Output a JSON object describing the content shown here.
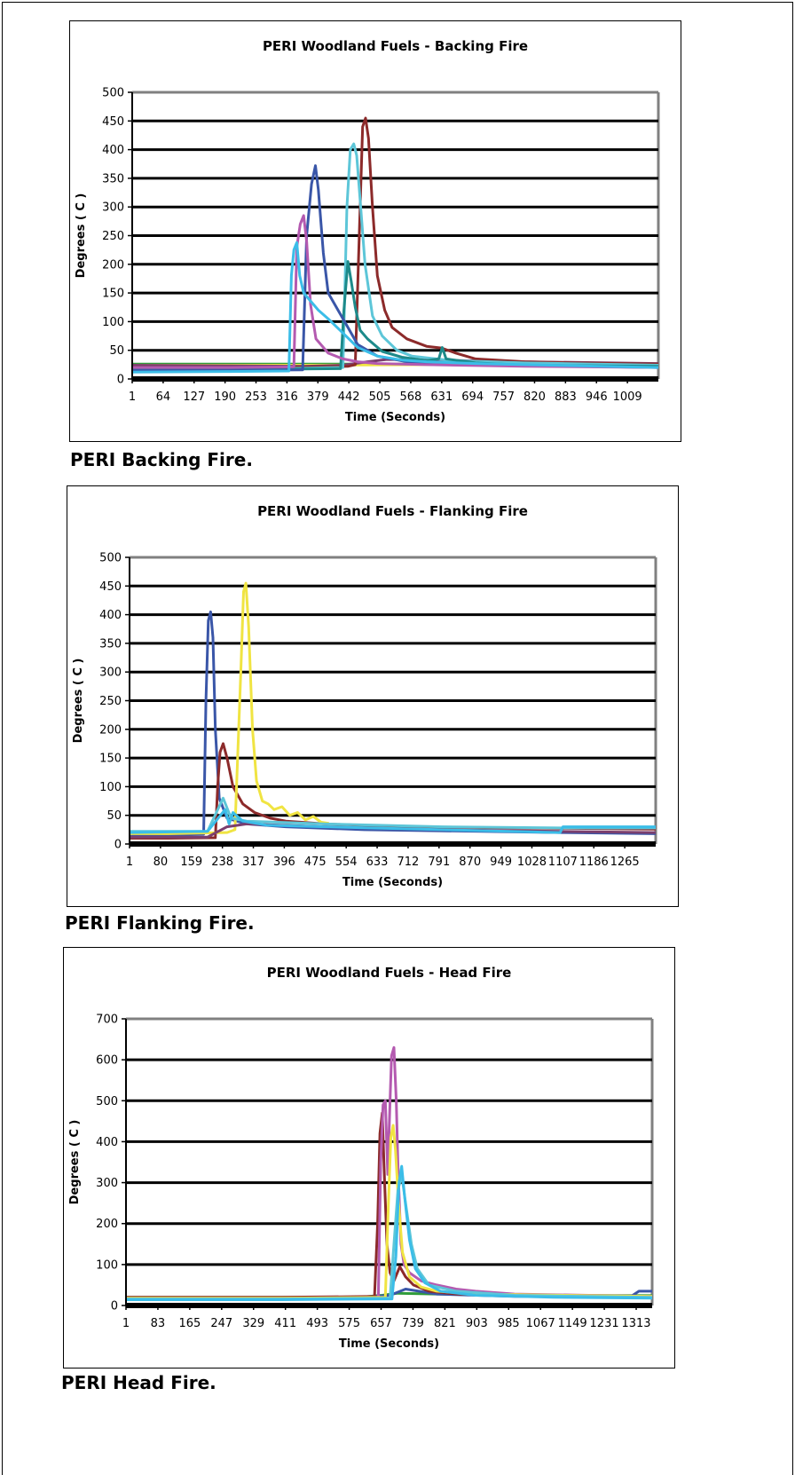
{
  "captions": [
    "PERI Backing Fire.",
    "PERI Flanking Fire.",
    "PERI Head Fire."
  ],
  "chart_data": [
    {
      "type": "line",
      "title": "PERI Woodland Fuels    - Backing Fire",
      "xlabel": "Time (Seconds)",
      "ylabel": "Degrees  ( C )",
      "ylim": [
        0,
        500
      ],
      "yticks": [
        0,
        50,
        100,
        150,
        200,
        250,
        300,
        350,
        400,
        450,
        500
      ],
      "xlim": [
        1,
        1072
      ],
      "xticks": [
        1,
        64,
        127,
        190,
        253,
        316,
        379,
        442,
        505,
        568,
        631,
        694,
        757,
        820,
        883,
        946,
        1009
      ],
      "grid": true,
      "legend": "none",
      "series": [
        {
          "color": "#2f9c3a",
          "x": [
            1,
            300,
            500,
            700,
            900,
            1072
          ],
          "y": [
            26,
            26,
            26,
            26,
            26,
            26
          ]
        },
        {
          "color": "#f0e442",
          "x": [
            1,
            350,
            600,
            800,
            1072
          ],
          "y": [
            24,
            24,
            25,
            24,
            24
          ]
        },
        {
          "color": "#7b3f6e",
          "x": [
            1,
            200,
            350,
            430,
            480,
            520,
            600,
            800,
            1072
          ],
          "y": [
            24,
            23,
            22,
            24,
            30,
            34,
            33,
            30,
            27
          ]
        },
        {
          "color": "#8c2a2a",
          "x": [
            1,
            300,
            440,
            455,
            465,
            470,
            476,
            482,
            490,
            500,
            515,
            530,
            560,
            600,
            630,
            660,
            700,
            800,
            900,
            1072
          ],
          "y": [
            20,
            20,
            22,
            25,
            300,
            440,
            455,
            420,
            300,
            180,
            120,
            90,
            70,
            57,
            54,
            45,
            35,
            30,
            28,
            26
          ]
        },
        {
          "color": "#5dc6d8",
          "x": [
            1,
            300,
            430,
            438,
            445,
            452,
            458,
            466,
            475,
            490,
            510,
            540,
            570,
            650,
            800,
            1072
          ],
          "y": [
            18,
            18,
            20,
            300,
            400,
            410,
            390,
            300,
            200,
            110,
            75,
            50,
            40,
            32,
            28,
            24
          ]
        },
        {
          "color": "#1d8a8a",
          "x": [
            1,
            300,
            425,
            432,
            440,
            447,
            455,
            465,
            480,
            510,
            550,
            600,
            625,
            632,
            640,
            700,
            800,
            1072
          ],
          "y": [
            17,
            17,
            18,
            120,
            205,
            170,
            125,
            85,
            70,
            48,
            38,
            32,
            35,
            55,
            35,
            28,
            24,
            22
          ]
        },
        {
          "color": "#3a56a8",
          "x": [
            1,
            200,
            348,
            356,
            366,
            374,
            380,
            390,
            400,
            420,
            440,
            460,
            500,
            560,
            700,
            900,
            1072
          ],
          "y": [
            15,
            15,
            16,
            250,
            340,
            372,
            330,
            220,
            150,
            120,
            90,
            60,
            40,
            30,
            25,
            22,
            20
          ]
        },
        {
          "color": "#b45ab0",
          "x": [
            1,
            200,
            330,
            336,
            343,
            350,
            356,
            364,
            375,
            400,
            430,
            460,
            500,
            600,
            800,
            1072
          ],
          "y": [
            20,
            20,
            21,
            230,
            270,
            285,
            240,
            130,
            70,
            45,
            35,
            30,
            27,
            25,
            22,
            20
          ]
        },
        {
          "color": "#3bbde8",
          "x": [
            1,
            200,
            320,
            325,
            330,
            336,
            342,
            350,
            360,
            380,
            400,
            430,
            460,
            500,
            550,
            600,
            700,
            800,
            1072
          ],
          "y": [
            12,
            13,
            14,
            180,
            225,
            238,
            180,
            150,
            140,
            120,
            105,
            80,
            55,
            40,
            33,
            30,
            27,
            25,
            20
          ]
        }
      ]
    },
    {
      "type": "line",
      "title": "PERI Woodland Fuels    - Flanking Fire",
      "xlabel": "Time (Seconds)",
      "ylabel": "Degrees  ( C )",
      "ylim": [
        0,
        500
      ],
      "yticks": [
        0,
        50,
        100,
        150,
        200,
        250,
        300,
        350,
        400,
        450,
        500
      ],
      "xlim": [
        1,
        1344
      ],
      "xticks": [
        1,
        80,
        159,
        238,
        317,
        396,
        475,
        554,
        633,
        712,
        791,
        870,
        949,
        1028,
        1107,
        1186,
        1265
      ],
      "grid": true,
      "legend": "none",
      "series": [
        {
          "color": "#3a56a8",
          "x": [
            1,
            100,
            190,
            196,
            202,
            208,
            214,
            220,
            230,
            250,
            300,
            400,
            600,
            900,
            1100,
            1344
          ],
          "y": [
            15,
            15,
            17,
            250,
            390,
            405,
            360,
            200,
            80,
            45,
            35,
            30,
            25,
            22,
            20,
            18
          ]
        },
        {
          "color": "#8c2a2a",
          "x": [
            1,
            100,
            220,
            226,
            232,
            240,
            250,
            265,
            290,
            320,
            360,
            400,
            500,
            700,
            1000,
            1344
          ],
          "y": [
            10,
            10,
            11,
            100,
            160,
            175,
            150,
            100,
            70,
            55,
            45,
            40,
            35,
            30,
            28,
            26
          ]
        },
        {
          "color": "#f0e442",
          "x": [
            1,
            100,
            250,
            270,
            285,
            292,
            298,
            305,
            315,
            325,
            340,
            355,
            370,
            390,
            410,
            430,
            450,
            470,
            490,
            510
          ],
          "y": [
            18,
            18,
            20,
            25,
            300,
            440,
            455,
            380,
            200,
            110,
            75,
            70,
            60,
            65,
            50,
            55,
            42,
            48,
            38,
            36
          ]
        },
        {
          "color": "#7b3f6e",
          "x": [
            1,
            200,
            250,
            300,
            500,
            800,
            1100,
            1344
          ],
          "y": [
            12,
            12,
            30,
            35,
            30,
            25,
            22,
            20
          ]
        },
        {
          "color": "#5dc6d8",
          "x": [
            1,
            200,
            240,
            260,
            300,
            500,
            800,
            1100,
            1344
          ],
          "y": [
            22,
            22,
            80,
            45,
            40,
            35,
            30,
            28,
            28
          ]
        },
        {
          "color": "#3bbde8",
          "x": [
            1,
            200,
            245,
            255,
            265,
            290,
            350,
            500,
            800,
            1100,
            1107,
            1344
          ],
          "y": [
            20,
            22,
            60,
            35,
            55,
            40,
            33,
            30,
            25,
            20,
            30,
            30
          ]
        }
      ]
    },
    {
      "type": "line",
      "title": "PERI Woodland Fuels    - Head Fire",
      "xlabel": "Time (Seconds)",
      "ylabel": "Degrees  ( C )",
      "ylim": [
        0,
        700
      ],
      "yticks": [
        0,
        100,
        200,
        300,
        400,
        500,
        600,
        700
      ],
      "xlim": [
        1,
        1354
      ],
      "xticks": [
        1,
        83,
        165,
        247,
        329,
        411,
        493,
        575,
        657,
        739,
        821,
        903,
        985,
        1067,
        1149,
        1231,
        1313
      ],
      "grid": true,
      "legend": "none",
      "series": [
        {
          "color": "#2f9c3a",
          "x": [
            1,
            300,
            600,
            660,
            700,
            800,
            1000,
            1354
          ],
          "y": [
            20,
            20,
            20,
            25,
            30,
            28,
            25,
            24
          ]
        },
        {
          "color": "#3a56a8",
          "x": [
            1,
            300,
            600,
            680,
            720,
            800,
            1000,
            1300,
            1320,
            1354
          ],
          "y": [
            18,
            18,
            19,
            25,
            40,
            28,
            22,
            22,
            35,
            35
          ]
        },
        {
          "color": "#8c2a2a",
          "x": [
            1,
            400,
            640,
            648,
            654,
            660,
            666,
            672,
            680,
            690,
            705,
            720,
            740,
            780,
            850,
            1000,
            1354
          ],
          "y": [
            20,
            20,
            22,
            200,
            420,
            470,
            300,
            150,
            80,
            60,
            95,
            70,
            50,
            35,
            28,
            24,
            22
          ]
        },
        {
          "color": "#b45ab0",
          "x": [
            1,
            400,
            650,
            656,
            662,
            668,
            674,
            680,
            684,
            690,
            696,
            700,
            708,
            716,
            730,
            760,
            800,
            850,
            900,
            1000,
            1354
          ],
          "y": [
            18,
            18,
            20,
            350,
            490,
            500,
            320,
            500,
            610,
            630,
            500,
            350,
            150,
            100,
            80,
            60,
            50,
            40,
            35,
            28,
            22
          ]
        },
        {
          "color": "#f0e442",
          "x": [
            1,
            400,
            668,
            676,
            682,
            688,
            694,
            702,
            712,
            730,
            760,
            800,
            900,
            1354
          ],
          "y": [
            18,
            18,
            20,
            250,
            410,
            440,
            380,
            250,
            130,
            70,
            45,
            35,
            28,
            22
          ]
        },
        {
          "color": "#5dc6d8",
          "x": [
            1,
            400,
            680,
            690,
            700,
            710,
            720,
            735,
            750,
            780,
            850,
            1000,
            1354
          ],
          "y": [
            16,
            16,
            18,
            150,
            280,
            320,
            250,
            150,
            90,
            50,
            35,
            25,
            20
          ]
        },
        {
          "color": "#3bbde8",
          "x": [
            1,
            400,
            685,
            695,
            703,
            710,
            718,
            730,
            745,
            770,
            810,
            900,
            1100,
            1354
          ],
          "y": [
            14,
            14,
            16,
            120,
            300,
            340,
            260,
            160,
            90,
            55,
            35,
            25,
            20,
            18
          ]
        }
      ]
    }
  ]
}
